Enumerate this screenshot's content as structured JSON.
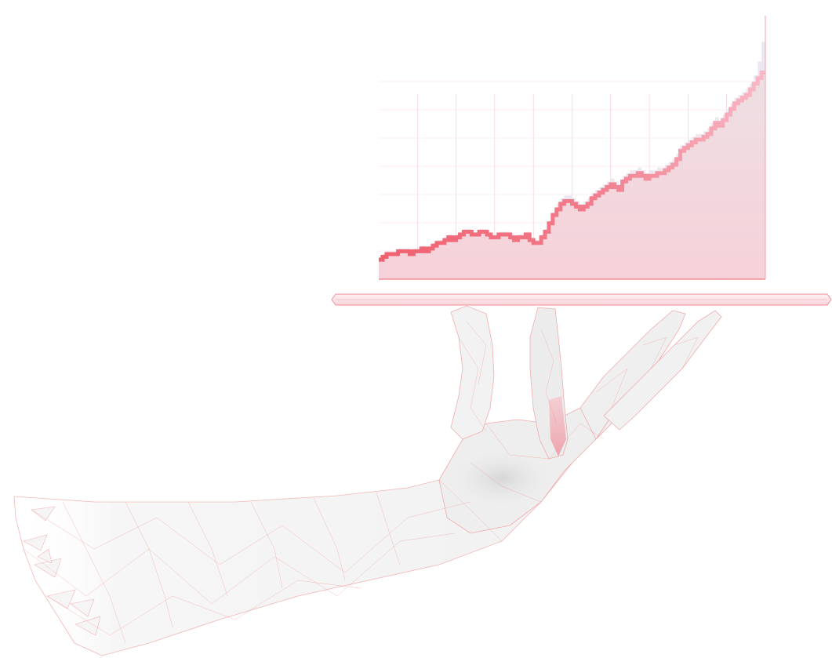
{
  "illustration": {
    "subject": "growth-chart-on-tray",
    "palette": {
      "accent": "#f0606e",
      "accent_light": "#f8a3b5",
      "fill_top": "#eddfe3",
      "fill_bottom": "#f6d3da",
      "ghost": "#ebe6ee",
      "mesh_line": "#ef8a8a",
      "hand_fill": "#f3f3f3",
      "hand_shade": "#dedede",
      "tray_fill": "#fae3e6"
    },
    "icons": [
      "trend-line-icon",
      "hand-icon",
      "tray-icon"
    ]
  },
  "chart_data": {
    "type": "area",
    "title": "",
    "xlabel": "",
    "ylabel": "",
    "ylim": [
      0,
      100
    ],
    "grid": true,
    "x": [
      0,
      1,
      2,
      3,
      4,
      5,
      6,
      7,
      8,
      9,
      10,
      11,
      12,
      13,
      14,
      15,
      16,
      17,
      18,
      19,
      20,
      21,
      22,
      23,
      24,
      25,
      26,
      27,
      28,
      29,
      30,
      31,
      32,
      33,
      34,
      35,
      36,
      37,
      38,
      39,
      40,
      41,
      42,
      43,
      44,
      45,
      46,
      47,
      48,
      49,
      50,
      51,
      52,
      53,
      54,
      55,
      56,
      57,
      58,
      59,
      60,
      61,
      62,
      63,
      64,
      65,
      66,
      67,
      68,
      69,
      70,
      71,
      72,
      73,
      74,
      75,
      76,
      77,
      78,
      79,
      80,
      81,
      82,
      83,
      84,
      85,
      86,
      87,
      88,
      89,
      90,
      91,
      92,
      93,
      94,
      95,
      96,
      97,
      98,
      99
    ],
    "series": [
      {
        "values": [
          7,
          8,
          9,
          9,
          9,
          10,
          10,
          10,
          9,
          10,
          10,
          11,
          10,
          11,
          12,
          13,
          13,
          14,
          15,
          14,
          15,
          16,
          17,
          17,
          16,
          16,
          17,
          17,
          16,
          15,
          15,
          16,
          16,
          16,
          15,
          14,
          15,
          15,
          16,
          14,
          13,
          13,
          15,
          17,
          20,
          23,
          25,
          27,
          28,
          28,
          27,
          26,
          25,
          26,
          27,
          29,
          30,
          31,
          32,
          33,
          34,
          33,
          32,
          35,
          36,
          37,
          37,
          38,
          37,
          36,
          37,
          37,
          38,
          38,
          39,
          40,
          41,
          43,
          46,
          47,
          48,
          49,
          50,
          50,
          51,
          52,
          54,
          56,
          55,
          57,
          59,
          61,
          63,
          64,
          65,
          66,
          68,
          70,
          72,
          74
        ],
        "ghost_values": [
          8,
          9,
          10,
          10,
          10,
          11,
          11,
          11,
          10,
          11,
          11,
          12,
          11,
          12,
          13,
          14,
          14,
          15,
          16,
          15,
          16,
          17,
          18,
          18,
          17,
          17,
          18,
          18,
          17,
          16,
          16,
          17,
          17,
          17,
          16,
          15,
          16,
          16,
          17,
          15,
          14,
          14,
          16,
          18,
          21,
          24,
          27,
          29,
          30,
          30,
          29,
          28,
          27,
          28,
          29,
          31,
          32,
          33,
          34,
          35,
          36,
          35,
          34,
          37,
          38,
          39,
          39,
          40,
          39,
          38,
          39,
          39,
          40,
          40,
          41,
          42,
          43,
          45,
          48,
          49,
          50,
          51,
          52,
          52,
          53,
          54,
          56,
          58,
          57,
          59,
          61,
          63,
          65,
          66,
          67,
          68,
          70,
          73,
          78,
          85
        ]
      }
    ]
  }
}
